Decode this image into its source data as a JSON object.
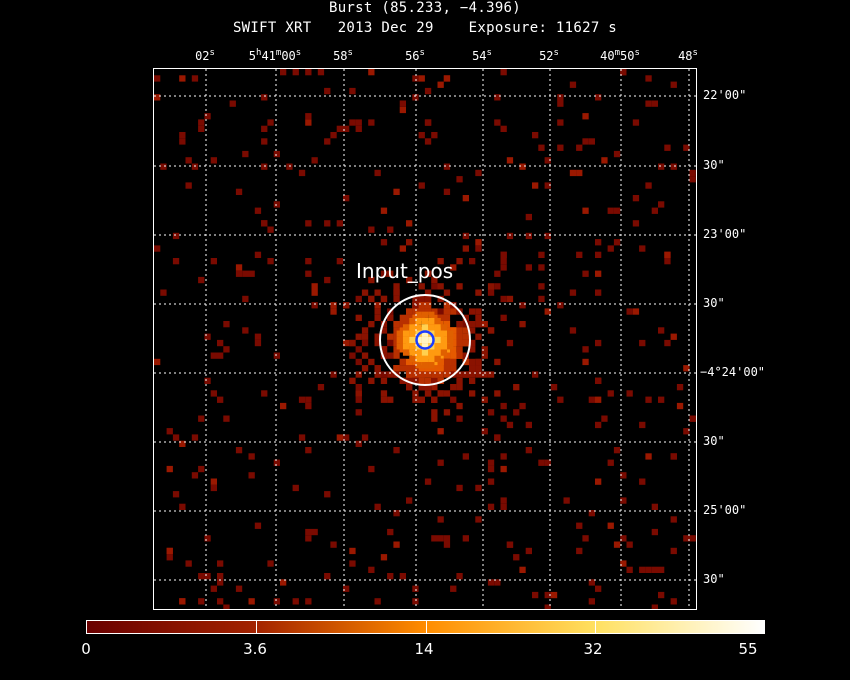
{
  "title": {
    "line1": "Burst (85.233, −4.396)",
    "line2": "SWIFT XRT   2013 Dec 29    Exposure: 11627 s"
  },
  "ra_ticks": [
    {
      "text": "02",
      "sup": "s"
    },
    {
      "text": "5",
      "sup": "h",
      "text2": "41",
      "sup2": "m",
      "text3": "00",
      "sup3": "s"
    },
    {
      "text": "58",
      "sup": "s"
    },
    {
      "text": "56",
      "sup": "s"
    },
    {
      "text": "54",
      "sup": "s"
    },
    {
      "text": "52",
      "sup": "s"
    },
    {
      "text": "40",
      "sup": "m",
      "text2": "50",
      "sup2": "s"
    },
    {
      "text": "48",
      "sup": "s"
    }
  ],
  "dec_ticks": [
    {
      "text": "22'00\""
    },
    {
      "text": "30\""
    },
    {
      "text": "23'00\""
    },
    {
      "text": "30\""
    },
    {
      "text": "−4°24'00\""
    },
    {
      "text": "30\""
    },
    {
      "text": "25'00\""
    },
    {
      "text": "30\""
    }
  ],
  "source_label": "Input_pos",
  "colorbar": {
    "scale": "log",
    "labels": [
      "0",
      "3.6",
      "14",
      "32",
      "55"
    ],
    "colors": [
      "#6a0000",
      "#a32300",
      "#ff8c00",
      "#ffe060",
      "#ffffff"
    ]
  },
  "colors": {
    "background": "#000000",
    "axes": "#ffffff",
    "circle": "#ffffff",
    "inner_circle": "#1a3cff"
  }
}
